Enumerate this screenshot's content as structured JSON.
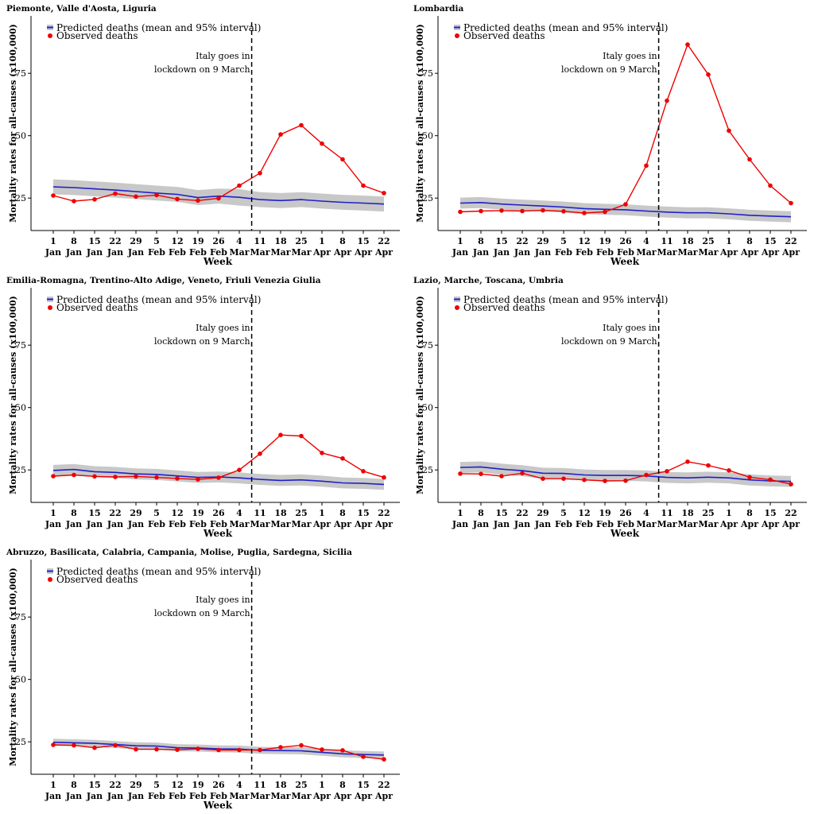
{
  "chart_data": [
    {
      "type": "line",
      "title": "Piemonte, Valle d'Aosta, Liguria",
      "xlabel": "Week",
      "ylabel": "Mortality rates for all-causes (x100,000)",
      "x_tick_days": [
        "1",
        "8",
        "15",
        "22",
        "29",
        "5",
        "12",
        "19",
        "26",
        "4",
        "11",
        "18",
        "25",
        "1",
        "8",
        "15",
        "22"
      ],
      "x_tick_months": [
        "Jan",
        "Jan",
        "Jan",
        "Jan",
        "Jan",
        "Feb",
        "Feb",
        "Feb",
        "Feb",
        "Mar",
        "Mar",
        "Mar",
        "Mar",
        "Apr",
        "Apr",
        "Apr",
        "Apr"
      ],
      "y_ticks": [
        "25",
        "50",
        "75"
      ],
      "ylim": [
        12,
        98
      ],
      "vline_index": 9.6,
      "annotation": [
        "Italy goes in",
        "lockdown on 9 March"
      ],
      "legend": [
        "Predicted deaths (mean and 95% interval)",
        "Observed deaths"
      ],
      "series": [
        {
          "name": "Predicted deaths (mean and 95% interval)",
          "values": [
            29.5,
            29.2,
            28.7,
            28.2,
            27.6,
            27.0,
            26.5,
            25.2,
            25.8,
            25.3,
            24.4,
            24.0,
            24.4,
            23.8,
            23.3,
            23.0,
            22.6
          ],
          "lower": [
            26.5,
            26.2,
            25.7,
            25.2,
            24.6,
            24.0,
            23.5,
            22.2,
            22.8,
            22.0,
            21.4,
            21.0,
            21.4,
            20.8,
            20.3,
            20.0,
            19.6
          ],
          "upper": [
            32.5,
            32.2,
            31.7,
            31.2,
            30.6,
            30.0,
            29.5,
            28.2,
            28.8,
            28.6,
            27.4,
            27.0,
            27.4,
            26.8,
            26.3,
            26.0,
            25.6
          ]
        },
        {
          "name": "Observed deaths",
          "values": [
            26.0,
            23.8,
            24.5,
            26.8,
            25.6,
            26.2,
            24.6,
            24.0,
            24.9,
            30.0,
            35.0,
            50.5,
            54.2,
            46.8,
            40.5,
            30.0,
            27.0
          ]
        }
      ]
    },
    {
      "type": "line",
      "title": "Lombardia",
      "xlabel": "Week",
      "ylabel": "Mortality rates for all-causes (x100,000)",
      "x_tick_days": [
        "1",
        "8",
        "15",
        "22",
        "29",
        "5",
        "12",
        "19",
        "26",
        "4",
        "11",
        "18",
        "25",
        "1",
        "8",
        "15",
        "22"
      ],
      "x_tick_months": [
        "Jan",
        "Jan",
        "Jan",
        "Jan",
        "Jan",
        "Feb",
        "Feb",
        "Feb",
        "Feb",
        "Mar",
        "Mar",
        "Mar",
        "Mar",
        "Apr",
        "Apr",
        "Apr",
        "Apr"
      ],
      "y_ticks": [
        "25",
        "50",
        "75"
      ],
      "ylim": [
        12,
        98
      ],
      "vline_index": 9.6,
      "annotation": [
        "Italy goes in",
        "lockdown on 9 March"
      ],
      "legend": [
        "Predicted deaths (mean and 95% interval)",
        "Observed deaths"
      ],
      "series": [
        {
          "name": "Predicted deaths (mean and 95% interval)",
          "values": [
            23.0,
            23.2,
            22.6,
            22.2,
            21.8,
            21.4,
            20.8,
            20.5,
            20.3,
            19.8,
            19.4,
            19.1,
            19.1,
            18.7,
            18.1,
            17.8,
            17.5
          ],
          "lower": [
            20.8,
            21.0,
            20.4,
            20.0,
            19.6,
            19.2,
            18.6,
            18.3,
            18.1,
            17.6,
            17.2,
            16.9,
            16.9,
            16.5,
            15.9,
            15.6,
            15.3
          ],
          "upper": [
            25.2,
            25.4,
            24.8,
            24.4,
            24.0,
            23.6,
            23.0,
            22.7,
            22.5,
            22.0,
            21.6,
            21.3,
            21.3,
            20.9,
            20.3,
            20.0,
            19.7
          ]
        },
        {
          "name": "Observed deaths",
          "values": [
            19.5,
            19.8,
            20.0,
            19.8,
            20.1,
            19.7,
            19.0,
            19.5,
            22.5,
            38.0,
            64.0,
            86.5,
            74.5,
            52.0,
            40.5,
            30.0,
            23.0
          ]
        }
      ]
    },
    {
      "type": "line",
      "title": "Emilia-Romagna, Trentino-Alto Adige, Veneto, Friuli Venezia Giulia",
      "xlabel": "Week",
      "ylabel": "Mortality rates for all-causes (x100,000)",
      "x_tick_days": [
        "1",
        "8",
        "15",
        "22",
        "29",
        "5",
        "12",
        "19",
        "26",
        "4",
        "11",
        "18",
        "25",
        "1",
        "8",
        "15",
        "22"
      ],
      "x_tick_months": [
        "Jan",
        "Jan",
        "Jan",
        "Jan",
        "Jan",
        "Feb",
        "Feb",
        "Feb",
        "Feb",
        "Mar",
        "Mar",
        "Mar",
        "Mar",
        "Apr",
        "Apr",
        "Apr",
        "Apr"
      ],
      "y_ticks": [
        "25",
        "50",
        "75"
      ],
      "ylim": [
        12,
        98
      ],
      "vline_index": 9.6,
      "annotation": [
        "Italy goes in",
        "lockdown on 9 March"
      ],
      "legend": [
        "Predicted deaths (mean and 95% interval)",
        "Observed deaths"
      ],
      "series": [
        {
          "name": "Predicted deaths (mean and 95% interval)",
          "values": [
            24.8,
            25.2,
            24.3,
            24.0,
            23.4,
            23.2,
            22.6,
            22.0,
            22.2,
            21.8,
            21.2,
            20.8,
            21.0,
            20.5,
            19.8,
            19.6,
            19.2
          ],
          "lower": [
            22.6,
            23.0,
            22.1,
            21.8,
            21.2,
            21.0,
            20.4,
            19.8,
            20.0,
            19.6,
            19.0,
            18.6,
            18.8,
            18.3,
            17.6,
            17.4,
            17.0
          ],
          "upper": [
            27.0,
            27.4,
            26.5,
            26.2,
            25.6,
            25.4,
            24.8,
            24.2,
            24.4,
            24.0,
            23.4,
            23.0,
            23.2,
            22.7,
            22.0,
            21.8,
            21.4
          ]
        },
        {
          "name": "Observed deaths",
          "values": [
            22.5,
            23.0,
            22.4,
            22.2,
            22.4,
            22.0,
            21.6,
            21.2,
            21.9,
            25.0,
            31.5,
            39.0,
            38.6,
            31.8,
            29.6,
            24.5,
            22.0
          ]
        }
      ]
    },
    {
      "type": "line",
      "title": "Lazio, Marche, Toscana, Umbria",
      "xlabel": "Week",
      "ylabel": "Mortality rates for all-causes (x100,000)",
      "x_tick_days": [
        "1",
        "8",
        "15",
        "22",
        "29",
        "5",
        "12",
        "19",
        "26",
        "4",
        "11",
        "18",
        "25",
        "1",
        "8",
        "15",
        "22"
      ],
      "x_tick_months": [
        "Jan",
        "Jan",
        "Jan",
        "Jan",
        "Jan",
        "Feb",
        "Feb",
        "Feb",
        "Feb",
        "Mar",
        "Mar",
        "Mar",
        "Mar",
        "Apr",
        "Apr",
        "Apr",
        "Apr"
      ],
      "y_ticks": [
        "25",
        "50",
        "75"
      ],
      "ylim": [
        12,
        98
      ],
      "vline_index": 9.6,
      "annotation": [
        "Italy goes in",
        "lockdown on 9 March"
      ],
      "legend": [
        "Predicted deaths (mean and 95% interval)",
        "Observed deaths"
      ],
      "series": [
        {
          "name": "Predicted deaths (mean and 95% interval)",
          "values": [
            26.0,
            26.2,
            25.3,
            24.7,
            23.7,
            23.6,
            23.0,
            22.8,
            22.8,
            22.6,
            22.0,
            21.8,
            22.1,
            21.8,
            21.0,
            20.6,
            20.4
          ],
          "lower": [
            23.8,
            24.0,
            23.1,
            22.5,
            21.5,
            21.4,
            20.8,
            20.6,
            20.6,
            20.4,
            19.8,
            19.6,
            19.9,
            19.6,
            18.8,
            18.4,
            18.2
          ],
          "upper": [
            28.2,
            28.4,
            27.5,
            26.9,
            25.9,
            25.8,
            25.2,
            25.0,
            25.0,
            24.8,
            24.2,
            24.0,
            24.3,
            24.0,
            23.2,
            22.8,
            22.6
          ]
        },
        {
          "name": "Observed deaths",
          "values": [
            23.5,
            23.4,
            22.5,
            23.7,
            21.5,
            21.5,
            21.0,
            20.6,
            20.7,
            23.0,
            24.5,
            28.3,
            26.8,
            24.8,
            22.1,
            21.1,
            19.3
          ]
        }
      ]
    },
    {
      "type": "line",
      "title": "Abruzzo, Basilicata, Calabria, Campania, Molise, Puglia, Sardegna, Sicilia",
      "xlabel": "Week",
      "ylabel": "Mortality rates for all-causes (x100,000)",
      "x_tick_days": [
        "1",
        "8",
        "15",
        "22",
        "29",
        "5",
        "12",
        "19",
        "26",
        "4",
        "11",
        "18",
        "25",
        "1",
        "8",
        "15",
        "22"
      ],
      "x_tick_months": [
        "Jan",
        "Jan",
        "Jan",
        "Jan",
        "Jan",
        "Feb",
        "Feb",
        "Feb",
        "Feb",
        "Mar",
        "Mar",
        "Mar",
        "Mar",
        "Apr",
        "Apr",
        "Apr",
        "Apr"
      ],
      "y_ticks": [
        "25",
        "50",
        "75"
      ],
      "ylim": [
        12,
        98
      ],
      "vline_index": 9.6,
      "annotation": [
        "Italy goes in",
        "lockdown on 9 March"
      ],
      "legend": [
        "Predicted deaths (mean and 95% interval)",
        "Observed deaths"
      ],
      "series": [
        {
          "name": "Predicted deaths (mean and 95% interval)",
          "values": [
            24.8,
            24.6,
            24.4,
            23.9,
            23.4,
            23.3,
            22.6,
            22.5,
            22.2,
            22.1,
            21.6,
            21.5,
            21.4,
            20.8,
            20.2,
            19.9,
            19.7
          ],
          "lower": [
            23.4,
            23.2,
            23.0,
            22.5,
            22.0,
            21.9,
            21.2,
            21.1,
            20.8,
            20.7,
            20.2,
            20.1,
            20.0,
            19.4,
            18.8,
            18.5,
            18.3
          ],
          "upper": [
            26.2,
            26.0,
            25.8,
            25.3,
            24.8,
            24.7,
            24.0,
            23.9,
            23.6,
            23.5,
            23.0,
            22.9,
            22.8,
            22.2,
            21.6,
            21.3,
            21.1
          ]
        },
        {
          "name": "Observed deaths",
          "values": [
            23.8,
            23.6,
            22.6,
            23.6,
            22.0,
            22.0,
            21.8,
            22.2,
            21.7,
            21.7,
            21.7,
            22.8,
            23.6,
            21.9,
            21.6,
            19.0,
            18.0
          ]
        }
      ]
    }
  ],
  "colors": {
    "predicted": "#2020c8",
    "band": "#c8c8c8",
    "observed": "#ee0000"
  }
}
